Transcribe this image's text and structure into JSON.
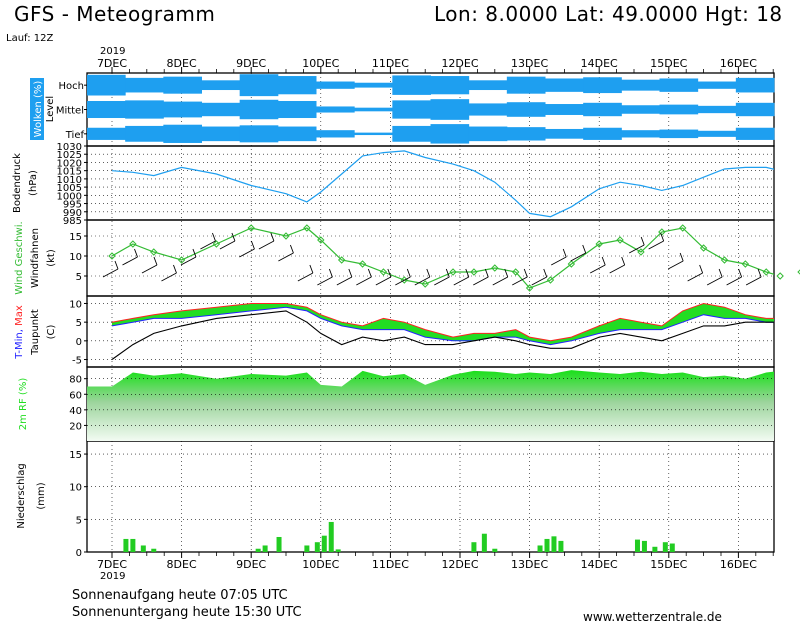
{
  "header": {
    "title": "GFS - Meteogramm",
    "location": "Lon: 8.0000  Lat: 49.0000  Hgt: 18",
    "run": "Lauf: 12Z"
  },
  "time_axis": {
    "year": "2019",
    "days": [
      "7DEC",
      "8DEC",
      "9DEC",
      "10DEC",
      "11DEC",
      "12DEC",
      "13DEC",
      "14DEC",
      "15DEC",
      "16DEC"
    ]
  },
  "footer": {
    "sunrise": "Sonnenaufgang heute 07:05 UTC",
    "sunset": "Sonnenuntergang heute 15:30 UTC",
    "website": "www.wetterzentrale.de"
  },
  "colors": {
    "cloud": "#1e9ff0",
    "pressure": "#1e9ff0",
    "wind": "#33bb33",
    "tmax_fill": "#22dd22",
    "tmax_line": "#ff2222",
    "tmin_line": "#2222ff",
    "humidity": "#22dd22",
    "precip": "#22cc22"
  },
  "chart_data": [
    {
      "type": "heatmap",
      "ylabel": "Wolken (%)",
      "level_label": "Level",
      "levels": [
        "Hoch",
        "Mittel",
        "Tief"
      ],
      "cover_pct": {
        "Hoch": [
          85,
          60,
          70,
          40,
          90,
          75,
          30,
          20,
          80,
          75,
          40,
          70,
          55,
          65,
          45,
          55,
          30,
          60
        ],
        "Mittel": [
          70,
          75,
          65,
          55,
          80,
          70,
          25,
          15,
          75,
          85,
          50,
          60,
          45,
          55,
          35,
          40,
          30,
          55
        ],
        "Tief": [
          50,
          65,
          75,
          60,
          70,
          60,
          30,
          10,
          65,
          80,
          60,
          55,
          40,
          50,
          30,
          35,
          25,
          50
        ]
      }
    },
    {
      "type": "line",
      "ylabel": "Bodendruck (hPa)",
      "yticks": [
        985,
        990,
        995,
        1000,
        1005,
        1010,
        1015,
        1020,
        1025,
        1030
      ],
      "ylim": [
        985,
        1030
      ],
      "x_days": [
        0,
        0.3,
        0.6,
        1.0,
        1.5,
        2.0,
        2.5,
        2.8,
        3.0,
        3.3,
        3.6,
        3.9,
        4.2,
        4.5,
        4.9,
        5.2,
        5.5,
        5.8,
        6.0,
        6.3,
        6.6,
        7.0,
        7.3,
        7.6,
        7.9,
        8.2,
        8.5,
        8.8,
        9.1,
        9.4,
        9.6,
        9.9
      ],
      "values": [
        1015,
        1014,
        1012,
        1017,
        1013,
        1006,
        1001,
        996,
        1002,
        1013,
        1024,
        1026,
        1027,
        1023,
        1019,
        1015,
        1008,
        997,
        989,
        987,
        993,
        1004,
        1008,
        1006,
        1003,
        1006,
        1011,
        1016,
        1017,
        1017,
        1015,
        1015
      ]
    },
    {
      "type": "line",
      "ylabel": "Wind Geschwi. (kt)",
      "barb_label": "Windfahnen",
      "yticks": [
        5,
        10,
        15
      ],
      "ylim": [
        0,
        19
      ],
      "x_days": [
        0,
        0.3,
        0.6,
        1.0,
        1.5,
        2.0,
        2.5,
        2.8,
        3.0,
        3.3,
        3.6,
        3.9,
        4.2,
        4.5,
        4.9,
        5.2,
        5.5,
        5.8,
        6.0,
        6.3,
        6.6,
        7.0,
        7.3,
        7.6,
        7.9,
        8.2,
        8.5,
        8.8,
        9.1,
        9.4,
        9.6,
        9.9
      ],
      "values": [
        10,
        13,
        11,
        9,
        13,
        17,
        15,
        17,
        14,
        9,
        8,
        6,
        4,
        3,
        6,
        6,
        7,
        6,
        2,
        4,
        8,
        13,
        14,
        11,
        16,
        17,
        12,
        9,
        8,
        6,
        5,
        6
      ]
    },
    {
      "type": "area",
      "ylabel": "T-Min, Max Taupunkt (C)",
      "yticks": [
        -5,
        0,
        5,
        10
      ],
      "ylim": [
        -7,
        12
      ],
      "x_days": [
        0,
        0.3,
        0.6,
        1.0,
        1.5,
        2.0,
        2.5,
        2.8,
        3.0,
        3.3,
        3.6,
        3.9,
        4.2,
        4.5,
        4.9,
        5.2,
        5.5,
        5.8,
        6.0,
        6.3,
        6.6,
        7.0,
        7.3,
        7.6,
        7.9,
        8.2,
        8.5,
        8.8,
        9.1,
        9.4,
        9.6,
        9.9
      ],
      "series": [
        {
          "name": "Max",
          "values": [
            5,
            6,
            7,
            8,
            9,
            10,
            10,
            9,
            7,
            5,
            4,
            6,
            5,
            3,
            1,
            2,
            2,
            3,
            1,
            0,
            1,
            4,
            6,
            5,
            4,
            8,
            10,
            9,
            7,
            6,
            6,
            7
          ]
        },
        {
          "name": "Min",
          "values": [
            4,
            5,
            6,
            6,
            7,
            8,
            9,
            8,
            6,
            4,
            3,
            3,
            3,
            1,
            0,
            0,
            1,
            1,
            0,
            -1,
            0,
            2,
            3,
            3,
            3,
            5,
            7,
            6,
            6,
            5,
            5,
            7
          ]
        },
        {
          "name": "Taupunkt",
          "values": [
            -5,
            -1,
            2,
            4,
            6,
            7,
            8,
            5,
            2,
            -1,
            1,
            0,
            1,
            -1,
            -1,
            0,
            1,
            0,
            -1,
            -2,
            -2,
            1,
            2,
            1,
            0,
            2,
            4,
            4,
            5,
            5,
            5,
            6
          ]
        }
      ]
    },
    {
      "type": "area",
      "ylabel": "2m RF (%)",
      "yticks": [
        20,
        40,
        60,
        80
      ],
      "ylim": [
        0,
        95
      ],
      "x_days": [
        0,
        0.3,
        0.6,
        1.0,
        1.5,
        2.0,
        2.5,
        2.8,
        3.0,
        3.3,
        3.6,
        3.9,
        4.2,
        4.5,
        4.9,
        5.2,
        5.5,
        5.8,
        6.0,
        6.3,
        6.6,
        7.0,
        7.3,
        7.6,
        7.9,
        8.2,
        8.5,
        8.8,
        9.1,
        9.4,
        9.6,
        9.9
      ],
      "values": [
        70,
        88,
        84,
        87,
        80,
        86,
        84,
        88,
        72,
        70,
        90,
        83,
        86,
        72,
        85,
        90,
        89,
        86,
        88,
        86,
        91,
        88,
        86,
        89,
        86,
        88,
        82,
        84,
        80,
        88,
        90,
        88
      ]
    },
    {
      "type": "bar",
      "ylabel": "Niederschlag (mm)",
      "yticks": [
        0,
        5,
        10,
        15
      ],
      "ylim": [
        0,
        17
      ],
      "x_days": [
        0.2,
        0.3,
        0.45,
        0.6,
        2.1,
        2.2,
        2.4,
        2.8,
        2.95,
        3.05,
        3.15,
        3.25,
        5.2,
        5.35,
        5.5,
        6.15,
        6.25,
        6.35,
        6.45,
        7.55,
        7.65,
        7.8,
        7.95,
        8.05
      ],
      "values": [
        2,
        2,
        1,
        0.5,
        0.5,
        1,
        2.3,
        1,
        1.5,
        2.5,
        4.6,
        0.4,
        1.5,
        2.8,
        0.5,
        1,
        2,
        2.4,
        1.7,
        1.9,
        1.7,
        0.8,
        1.5,
        1.3
      ]
    }
  ]
}
